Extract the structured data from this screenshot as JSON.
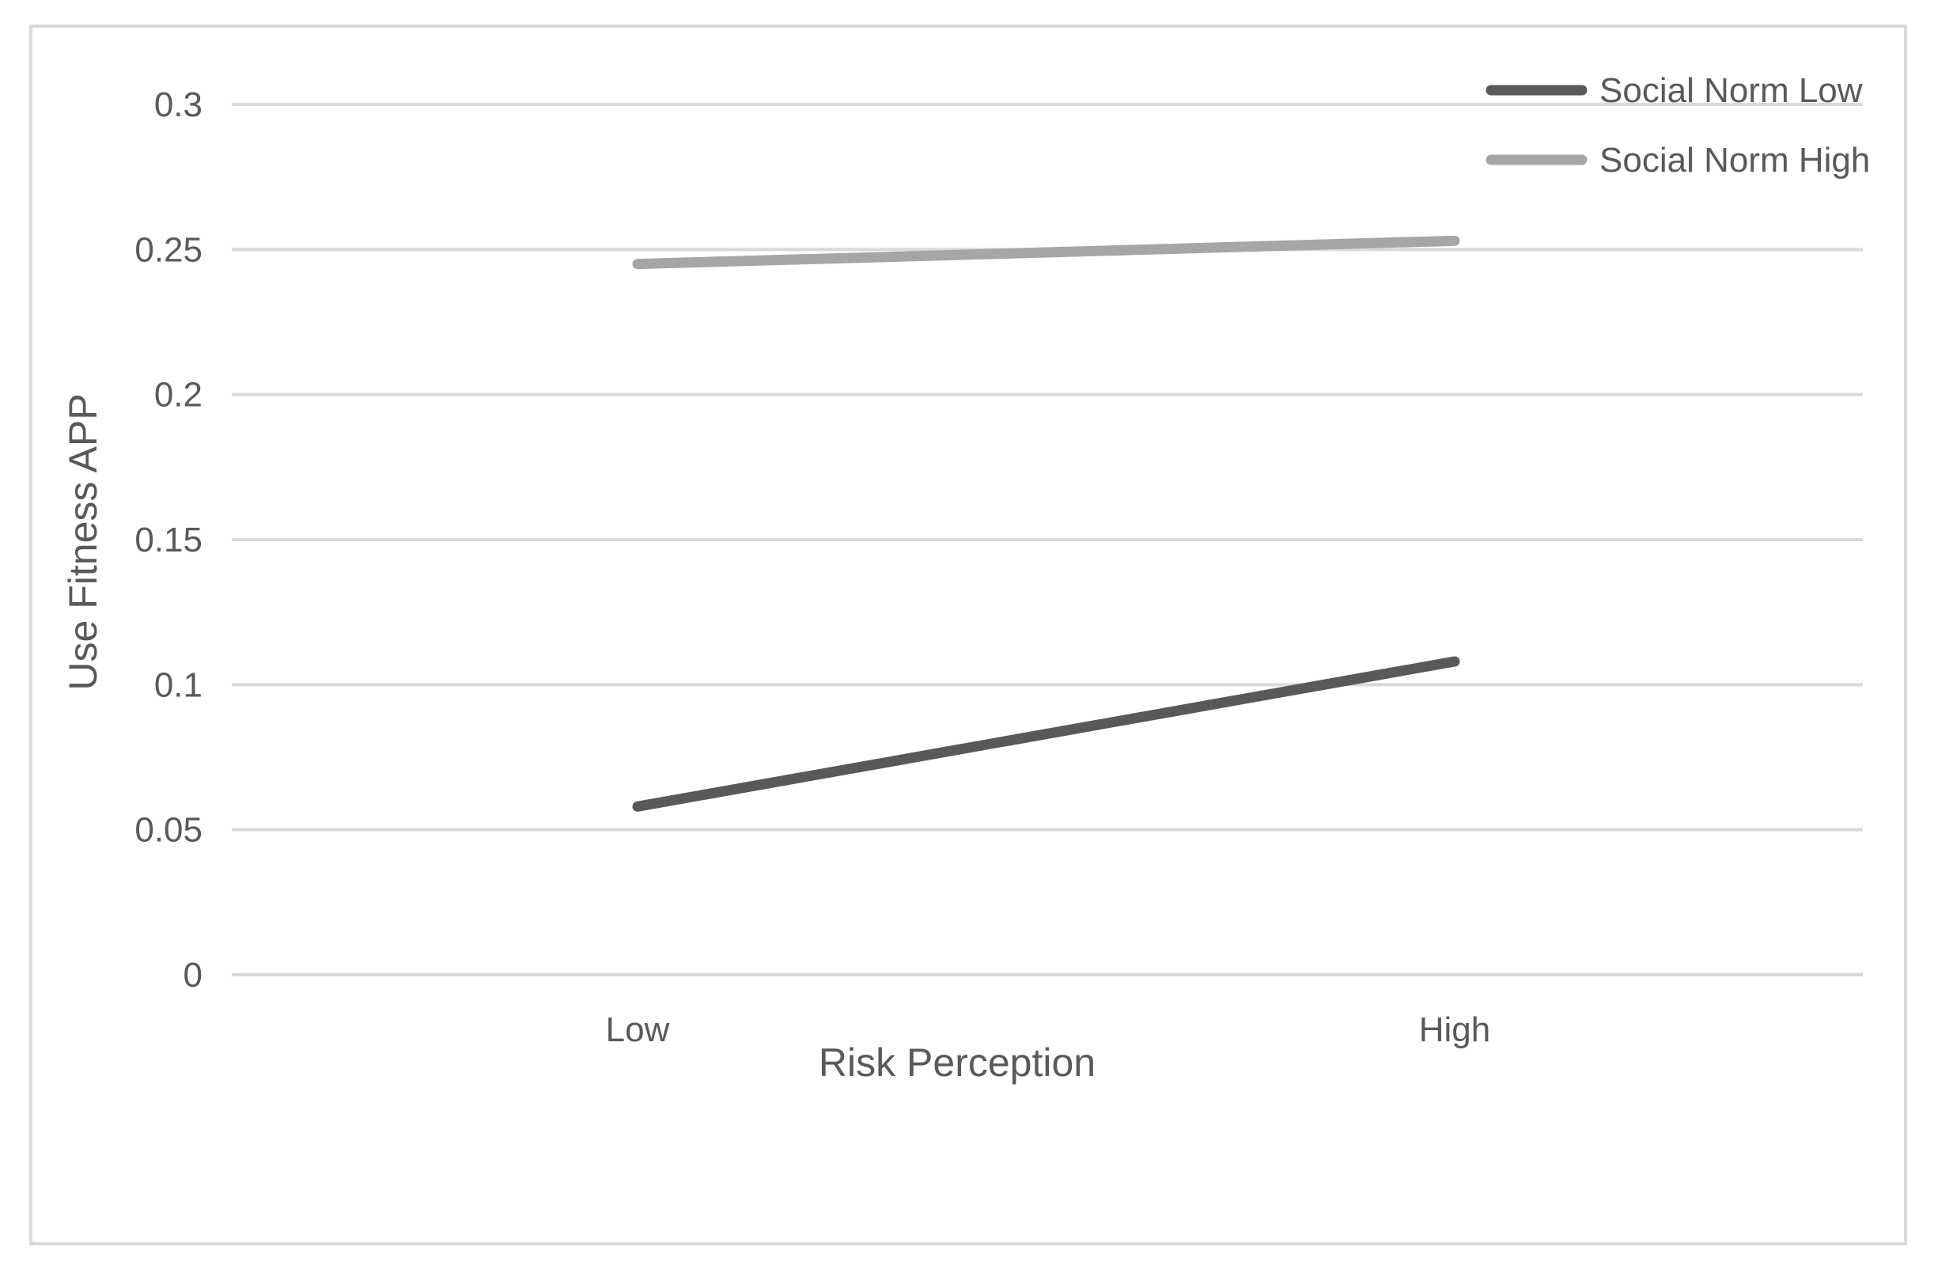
{
  "chart_data": {
    "type": "line",
    "title": "",
    "xlabel": "Risk Perception",
    "ylabel": "Use Fitness APP",
    "categories": [
      "Low",
      "High"
    ],
    "y_ticks": [
      "0",
      "0.05",
      "0.1",
      "0.15",
      "0.2",
      "0.25",
      "0.3"
    ],
    "ylim": [
      0,
      0.3
    ],
    "grid": true,
    "legend_position": "top-right",
    "series": [
      {
        "name": "Social Norm Low",
        "values": [
          0.058,
          0.108
        ],
        "color": "#595959"
      },
      {
        "name": "Social Norm High",
        "values": [
          0.245,
          0.253
        ],
        "color": "#a6a6a6"
      }
    ]
  }
}
